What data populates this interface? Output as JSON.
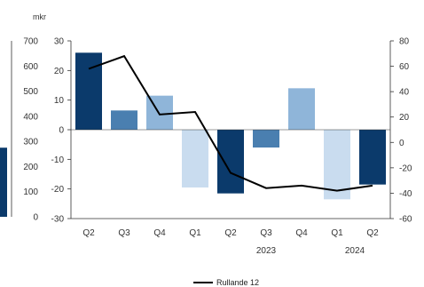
{
  "chart_data": {
    "type": "bar",
    "unit_label": "mkr",
    "categories": [
      "Q2",
      "Q3",
      "Q4",
      "Q1",
      "Q2",
      "Q3",
      "Q4",
      "Q1",
      "Q2"
    ],
    "year_labels": [
      {
        "label": "2023",
        "category_index": 5
      },
      {
        "label": "2024",
        "category_index": 7.5
      }
    ],
    "bars": {
      "values": [
        26,
        6.5,
        11.5,
        -19.5,
        -21.5,
        -6,
        14,
        -23.5,
        -18.5
      ],
      "colors": [
        "#0b3a6b",
        "#4a7fb0",
        "#8fb5d9",
        "#c9dcef",
        "#0b3a6b",
        "#4a7fb0",
        "#8fb5d9",
        "#c9dcef",
        "#0b3a6b"
      ],
      "ylim": [
        -30,
        30
      ],
      "yticks": [
        "30",
        "20",
        "10",
        "0",
        "-10",
        "-20",
        "-30"
      ]
    },
    "series": [
      {
        "name": "Rullande 12",
        "axis": "right",
        "color": "#000000",
        "values": [
          58,
          68,
          22,
          24,
          -24,
          -36,
          -34,
          -38,
          -34
        ]
      }
    ],
    "right_axis": {
      "ylim": [
        -60,
        80
      ],
      "yticks": [
        "80",
        "60",
        "40",
        "20",
        "0",
        "-20",
        "-40",
        "-60"
      ]
    },
    "left_partial_axis": {
      "ylim": [
        0,
        700
      ],
      "yticks": [
        "700",
        "600",
        "500",
        "400",
        "300",
        "200",
        "100",
        "0"
      ],
      "partial_bar_value": 275,
      "partial_bar_color": "#0b3a6b"
    },
    "legend": {
      "position": "bottom-center"
    }
  }
}
